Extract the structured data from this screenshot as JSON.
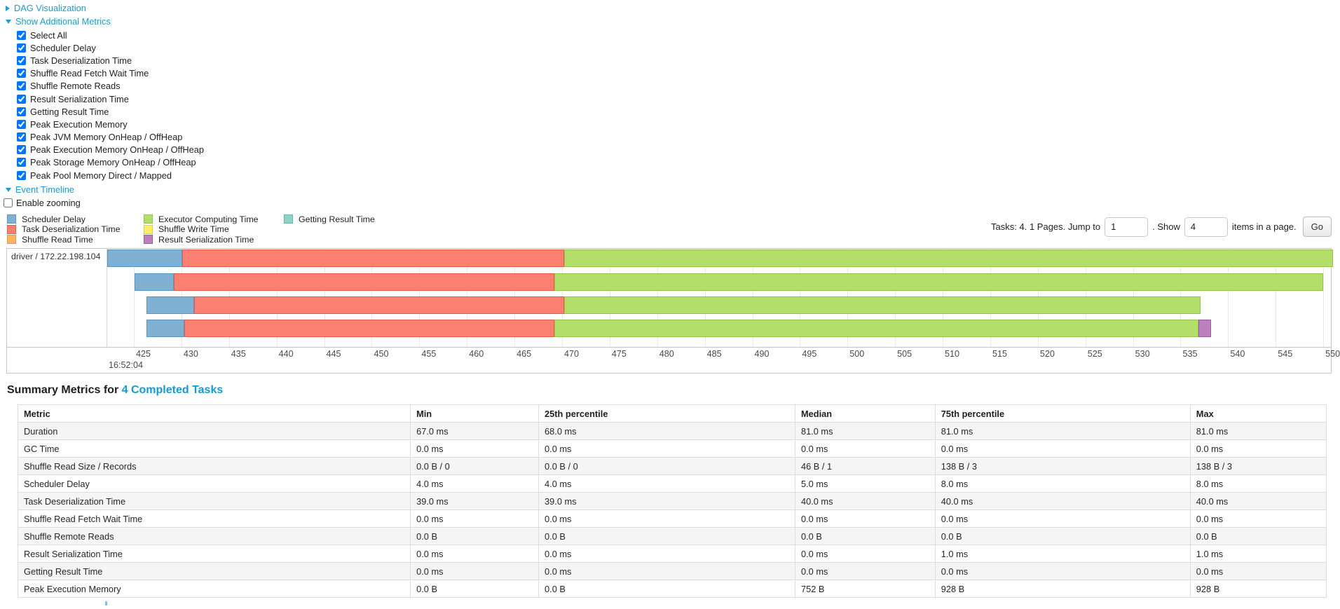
{
  "toggles": {
    "dag": {
      "label": "DAG Visualization",
      "state": "collapsed"
    },
    "metrics": {
      "label": "Show Additional Metrics",
      "state": "expanded"
    },
    "timeline": {
      "label": "Event Timeline",
      "state": "expanded"
    }
  },
  "metrics_checkboxes": [
    {
      "label": "Select All",
      "checked": true
    },
    {
      "label": "Scheduler Delay",
      "checked": true
    },
    {
      "label": "Task Deserialization Time",
      "checked": true
    },
    {
      "label": "Shuffle Read Fetch Wait Time",
      "checked": true
    },
    {
      "label": "Shuffle Remote Reads",
      "checked": true
    },
    {
      "label": "Result Serialization Time",
      "checked": true
    },
    {
      "label": "Getting Result Time",
      "checked": true
    },
    {
      "label": "Peak Execution Memory",
      "checked": true
    },
    {
      "label": "Peak JVM Memory OnHeap / OffHeap",
      "checked": true
    },
    {
      "label": "Peak Execution Memory OnHeap / OffHeap",
      "checked": true
    },
    {
      "label": "Peak Storage Memory OnHeap / OffHeap",
      "checked": true
    },
    {
      "label": "Peak Pool Memory Direct / Mapped",
      "checked": true
    }
  ],
  "enable_zooming": {
    "label": "Enable zooming",
    "checked": false
  },
  "legend": {
    "columns": [
      [
        {
          "key": "scheduler_delay",
          "label": "Scheduler Delay"
        },
        {
          "key": "task_deserialization",
          "label": "Task Deserialization Time"
        },
        {
          "key": "shuffle_read",
          "label": "Shuffle Read Time"
        }
      ],
      [
        {
          "key": "executor_computing",
          "label": "Executor Computing Time"
        },
        {
          "key": "shuffle_write",
          "label": "Shuffle Write Time"
        },
        {
          "key": "result_serialization",
          "label": "Result Serialization Time"
        }
      ],
      [
        {
          "key": "getting_result",
          "label": "Getting Result Time"
        }
      ]
    ]
  },
  "colors": {
    "scheduler_delay": {
      "fill": "#80B1D3",
      "border": "#5b97c2"
    },
    "task_deserialization": {
      "fill": "#FB8072",
      "border": "#e85c50"
    },
    "shuffle_read": {
      "fill": "#FDB462",
      "border": "#e89a43"
    },
    "executor_computing": {
      "fill": "#B3DE69",
      "border": "#93c54b"
    },
    "shuffle_write": {
      "fill": "#FFED6F",
      "border": "#e0cc4e"
    },
    "result_serialization": {
      "fill": "#BC80BD",
      "border": "#9e5ca0"
    },
    "getting_result": {
      "fill": "#8DD3C7",
      "border": "#63b8a8"
    },
    "link_blue": "#1d9bd7"
  },
  "pager": {
    "tasks_text": "Tasks: 4. 1 Pages. Jump to",
    "jump_value": "1",
    "show_text": ". Show",
    "show_value": "4",
    "items_text": "items in a page.",
    "go_label": "Go"
  },
  "event_timeline": {
    "type": "timeline",
    "executor_label": "driver / 172.22.198.104",
    "axis": {
      "start": 422.2,
      "end": 550.8,
      "tick_interval": 5,
      "ticks": [
        425,
        430,
        435,
        440,
        445,
        450,
        455,
        460,
        465,
        470,
        475,
        480,
        485,
        490,
        495,
        500,
        505,
        510,
        515,
        520,
        525,
        530,
        535,
        540,
        545,
        550
      ],
      "major_time_label": "16:52:04"
    },
    "row_tops": [
      1,
      35,
      68,
      101
    ],
    "rows": [
      {
        "segments": [
          {
            "metric": "scheduler_delay",
            "start": 422.2,
            "end": 430.1
          },
          {
            "metric": "task_deserialization",
            "start": 430.1,
            "end": 470.2
          },
          {
            "metric": "executor_computing",
            "start": 470.2,
            "end": 551.0
          }
        ]
      },
      {
        "segments": [
          {
            "metric": "scheduler_delay",
            "start": 425.1,
            "end": 429.2
          },
          {
            "metric": "task_deserialization",
            "start": 429.2,
            "end": 469.2
          },
          {
            "metric": "executor_computing",
            "start": 469.2,
            "end": 550.0
          }
        ]
      },
      {
        "segments": [
          {
            "metric": "scheduler_delay",
            "start": 426.3,
            "end": 431.3
          },
          {
            "metric": "task_deserialization",
            "start": 431.3,
            "end": 470.2
          },
          {
            "metric": "executor_computing",
            "start": 470.2,
            "end": 537.1
          }
        ]
      },
      {
        "segments": [
          {
            "metric": "scheduler_delay",
            "start": 426.3,
            "end": 430.3
          },
          {
            "metric": "task_deserialization",
            "start": 430.3,
            "end": 469.2
          },
          {
            "metric": "executor_computing",
            "start": 469.2,
            "end": 536.9
          },
          {
            "metric": "result_serialization",
            "start": 536.9,
            "end": 538.2
          }
        ]
      }
    ]
  },
  "summary": {
    "title_prefix": "Summary Metrics for ",
    "title_link": "4 Completed Tasks",
    "table": {
      "headers": [
        "Metric",
        "Min",
        "25th percentile",
        "Median",
        "75th percentile",
        "Max"
      ],
      "col_widths": [
        "30%",
        "9.8%",
        "19.6%",
        "10.7%",
        "19.5%",
        "10.4%"
      ],
      "rows": [
        {
          "metric": "Duration",
          "values": [
            "67.0 ms",
            "68.0 ms",
            "81.0 ms",
            "81.0 ms",
            "81.0 ms"
          ]
        },
        {
          "metric": "GC Time",
          "values": [
            "0.0 ms",
            "0.0 ms",
            "0.0 ms",
            "0.0 ms",
            "0.0 ms"
          ]
        },
        {
          "metric": "Shuffle Read Size / Records",
          "values": [
            "0.0 B / 0",
            "0.0 B / 0",
            "46 B / 1",
            "138 B / 3",
            "138 B / 3"
          ]
        },
        {
          "metric": "Scheduler Delay",
          "values": [
            "4.0 ms",
            "4.0 ms",
            "5.0 ms",
            "8.0 ms",
            "8.0 ms"
          ]
        },
        {
          "metric": "Task Deserialization Time",
          "values": [
            "39.0 ms",
            "39.0 ms",
            "40.0 ms",
            "40.0 ms",
            "40.0 ms"
          ]
        },
        {
          "metric": "Shuffle Read Fetch Wait Time",
          "values": [
            "0.0 ms",
            "0.0 ms",
            "0.0 ms",
            "0.0 ms",
            "0.0 ms"
          ]
        },
        {
          "metric": "Shuffle Remote Reads",
          "values": [
            "0.0 B",
            "0.0 B",
            "0.0 B",
            "0.0 B",
            "0.0 B"
          ]
        },
        {
          "metric": "Result Serialization Time",
          "values": [
            "0.0 ms",
            "0.0 ms",
            "0.0 ms",
            "1.0 ms",
            "1.0 ms"
          ]
        },
        {
          "metric": "Getting Result Time",
          "values": [
            "0.0 ms",
            "0.0 ms",
            "0.0 ms",
            "0.0 ms",
            "0.0 ms"
          ]
        },
        {
          "metric": "Peak Execution Memory",
          "values": [
            "0.0 B",
            "0.0 B",
            "752 B",
            "928 B",
            "928 B"
          ]
        }
      ]
    }
  }
}
